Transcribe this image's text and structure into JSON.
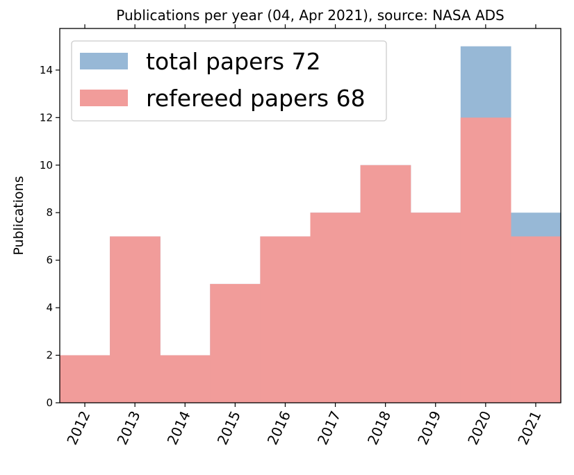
{
  "chart_data": {
    "type": "bar",
    "title": "Publications per year (04, Apr 2021), source: NASA ADS",
    "xlabel": "",
    "ylabel": "Publications",
    "categories": [
      "2012",
      "2013",
      "2014",
      "2015",
      "2016",
      "2017",
      "2018",
      "2019",
      "2020",
      "2021"
    ],
    "series": [
      {
        "name": "total papers 72",
        "values": [
          2,
          7,
          2,
          5,
          7,
          8,
          10,
          8,
          15,
          8
        ],
        "color": "#97b8d6"
      },
      {
        "name": "refereed papers 68",
        "values": [
          2,
          7,
          2,
          5,
          7,
          8,
          10,
          8,
          12,
          7
        ],
        "color": "#f19c9a"
      }
    ],
    "yticks": [
      "0",
      "2",
      "4",
      "6",
      "8",
      "10",
      "12",
      "14"
    ],
    "ylim": [
      0,
      15.75
    ],
    "legend_position": "top-left",
    "grid": false,
    "bar_style": "step-histogram"
  }
}
